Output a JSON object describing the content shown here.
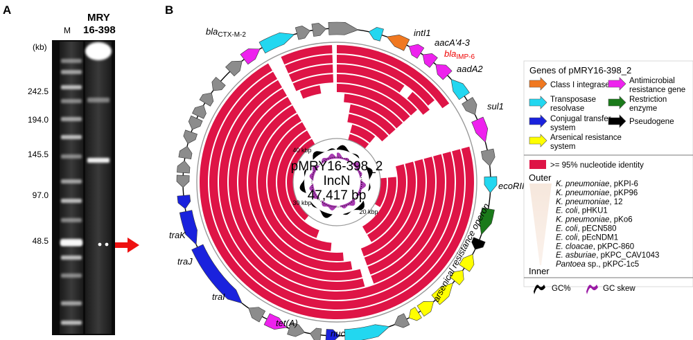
{
  "panel_a": {
    "letter": "A",
    "lane_m": "M",
    "sample_line1": "MRY",
    "sample_line2": "16-398",
    "unit": "(kb)",
    "markers": [
      "242.5",
      "194.0",
      "145.5",
      "97.0",
      "48.5"
    ]
  },
  "panel_b": {
    "letter": "B",
    "plasmid_name": "pMRY16-398_2",
    "inc_group": "IncN",
    "size": "47,417 bp",
    "kbp_ticks": [
      "40 kbp",
      "30 kbp",
      "20 kbp"
    ],
    "gene_labels": {
      "blactx_main": "bla",
      "blactx_sub": "CTX-M-2",
      "intl1": "intI1",
      "aac": "aacA'4-3",
      "blaimp_main": "bla",
      "blaimp_sub": "IMP-6",
      "aada2": "aadA2",
      "sul1": "sul1",
      "ecorii": "ecoRII",
      "trak": "traK",
      "traj": "traJ",
      "trai": "traI",
      "teta": "tet(A)",
      "nuc": "nuc",
      "arsenical": "arsenical resistance operon"
    },
    "colors": {
      "integrase": "#f07820",
      "antimicrobial": "#ee22ee",
      "transposase": "#22d7f0",
      "restriction": "#1a7a1a",
      "conjugal": "#1a22dd",
      "pseudogene": "#000000",
      "arsenical": "#ffff00",
      "other": "#8c8c8c",
      "identity": "#de1446",
      "gc_skew": "#9a1aa5",
      "imp_label": "#ee0000"
    }
  },
  "legend": {
    "title": "Genes of pMRY16-398_2",
    "entries": {
      "integrase": "Class I integrase",
      "antimicrobial_l1": "Antimicrobial",
      "antimicrobial_l2": "resistance gene",
      "transposase_l1": "Transposase",
      "transposase_l2": "resolvase",
      "restriction_l1": "Restriction",
      "restriction_l2": "enzyme",
      "conjugal_l1": "Conjugal transfer",
      "conjugal_l2": "system",
      "pseudogene": "Pseudogene",
      "arsenical_l1": "Arsenical resistance",
      "arsenical_l2": "system"
    },
    "identity": ">= 95% nucleotide identity",
    "outer": "Outer",
    "inner": "Inner",
    "rings": [
      {
        "species": "K. pneumoniae",
        "plasmid": ", pKPI-6"
      },
      {
        "species": "K. pneumoniae",
        "plasmid": ", pKP96"
      },
      {
        "species": "K. pneumoniae",
        "plasmid": ", 12"
      },
      {
        "species": "E. coli",
        "plasmid": ", pHKU1"
      },
      {
        "species": "K. pneumoniae",
        "plasmid": ", pKo6"
      },
      {
        "species": "E. coli",
        "plasmid": ", pECN580"
      },
      {
        "species": "E. coli",
        "plasmid": ", pEcNDM1"
      },
      {
        "species": "E. cloacae",
        "plasmid": ", pKPC-860"
      },
      {
        "species": "E. asburiae",
        "plasmid": ", pKPC_CAV1043"
      },
      {
        "species": "Pantoea",
        "plasmid": " sp., pKPC-1c5"
      }
    ],
    "gc_percent": "GC%",
    "gc_skew": "GC skew"
  }
}
